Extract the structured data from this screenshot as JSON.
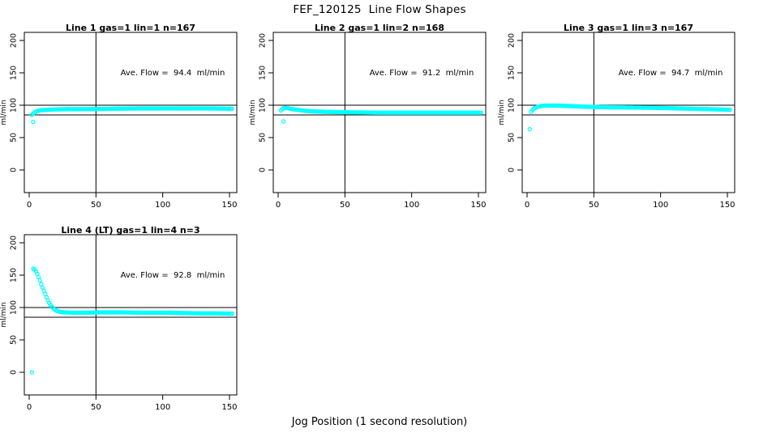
{
  "page": {
    "title": "FEF_120125  Line Flow Shapes",
    "xlabel": "Jog Position (1 second resolution)",
    "background": "#FFFFFF"
  },
  "chart_data": {
    "type": "scatter",
    "title": "FEF_120125  Line Flow Shapes",
    "xlabel": "Jog Position (1 second resolution)",
    "ylabel": "ml/min",
    "layout": "4 panels in 2x3 grid (bottom-middle and bottom-right empty), shared axes style",
    "point_color": "#00FFFF",
    "axis_color": "#000000",
    "grid": false,
    "xlim": [
      0,
      155
    ],
    "ylim": [
      0,
      200
    ],
    "x_ticks": [
      0,
      50,
      100,
      150
    ],
    "y_ticks": [
      0,
      50,
      100,
      150,
      200
    ],
    "hlines": [
      85,
      100
    ],
    "vline": 50,
    "marker": "open-circle",
    "panels": [
      {
        "title": "Line 1 gas=1 lin=1 n=167",
        "annotation": "Ave. Flow =  94.4  ml/min",
        "ave_flow": 94.4,
        "x_step": 1,
        "anchors": [
          [
            2,
            85
          ],
          [
            3,
            87
          ],
          [
            4,
            89
          ],
          [
            5,
            90
          ],
          [
            6,
            91
          ],
          [
            8,
            92
          ],
          [
            10,
            92.5
          ],
          [
            14,
            93
          ],
          [
            20,
            93.5
          ],
          [
            30,
            94
          ],
          [
            45,
            94
          ],
          [
            60,
            94.5
          ],
          [
            80,
            95
          ],
          [
            100,
            95
          ],
          [
            120,
            95
          ],
          [
            135,
            95
          ],
          [
            152,
            94.5
          ]
        ],
        "outliers": [
          [
            3,
            74
          ]
        ]
      },
      {
        "title": "Line 2 gas=1 lin=2 n=168",
        "annotation": "Ave. Flow =  91.2  ml/min",
        "ave_flow": 91.2,
        "x_step": 1,
        "anchors": [
          [
            2,
            92
          ],
          [
            3,
            94
          ],
          [
            4,
            95.5
          ],
          [
            5,
            96
          ],
          [
            7,
            95.5
          ],
          [
            9,
            94.5
          ],
          [
            12,
            93.5
          ],
          [
            16,
            92.5
          ],
          [
            20,
            91.5
          ],
          [
            25,
            90.5
          ],
          [
            32,
            90
          ],
          [
            40,
            89.5
          ],
          [
            55,
            89
          ],
          [
            75,
            88.5
          ],
          [
            100,
            88.5
          ],
          [
            130,
            88.5
          ],
          [
            152,
            88.5
          ]
        ],
        "outliers": [
          [
            4,
            75
          ]
        ]
      },
      {
        "title": "Line 3 gas=1 lin=3 n=167",
        "annotation": "Ave. Flow =  94.7  ml/min",
        "ave_flow": 94.7,
        "x_step": 1,
        "anchors": [
          [
            3,
            90
          ],
          [
            4,
            92.5
          ],
          [
            5,
            94.5
          ],
          [
            6,
            96
          ],
          [
            8,
            97.5
          ],
          [
            10,
            98.5
          ],
          [
            14,
            99.5
          ],
          [
            20,
            99.5
          ],
          [
            28,
            99
          ],
          [
            40,
            98
          ],
          [
            55,
            97
          ],
          [
            75,
            96.5
          ],
          [
            95,
            96
          ],
          [
            115,
            95
          ],
          [
            135,
            94
          ],
          [
            152,
            93
          ]
        ],
        "outliers": [
          [
            2,
            63
          ]
        ]
      },
      {
        "title": "Line 4 (LT) gas=1 lin=4 n=3",
        "annotation": "Ave. Flow =  92.8  ml/min",
        "ave_flow": 92.8,
        "x_step": 1,
        "anchors": [
          [
            3,
            160
          ],
          [
            4,
            159
          ],
          [
            5,
            156
          ],
          [
            6,
            152
          ],
          [
            7,
            147
          ],
          [
            8,
            142
          ],
          [
            9,
            136
          ],
          [
            10,
            131
          ],
          [
            11,
            126
          ],
          [
            12,
            121
          ],
          [
            13,
            116
          ],
          [
            14,
            111
          ],
          [
            15,
            107
          ],
          [
            16,
            104
          ],
          [
            17,
            101
          ],
          [
            18,
            99
          ],
          [
            19,
            97
          ],
          [
            20,
            95.5
          ],
          [
            22,
            94
          ],
          [
            24,
            93
          ],
          [
            27,
            92.5
          ],
          [
            32,
            92
          ],
          [
            40,
            92
          ],
          [
            55,
            92.5
          ],
          [
            70,
            92.5
          ],
          [
            85,
            92
          ],
          [
            100,
            92
          ],
          [
            115,
            91.5
          ],
          [
            130,
            91
          ],
          [
            140,
            91
          ],
          [
            152,
            90.5
          ]
        ],
        "outliers": [
          [
            2,
            0
          ]
        ]
      }
    ]
  }
}
